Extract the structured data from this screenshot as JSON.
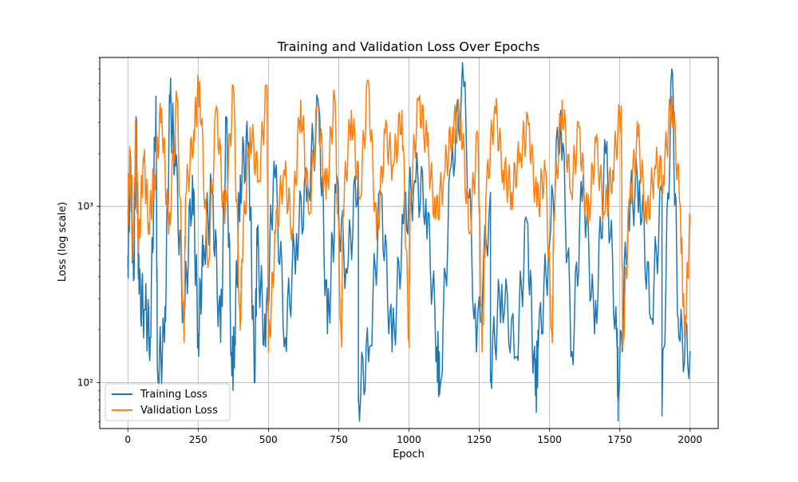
{
  "chart_data": {
    "type": "line",
    "title": "Training and Validation Loss Over Epochs",
    "xlabel": "Epoch",
    "ylabel": "Loss (log scale)",
    "xlim": [
      -100,
      2100
    ],
    "ylim": [
      55,
      7000
    ],
    "yscale": "log",
    "xticks": [
      0,
      250,
      500,
      750,
      1000,
      1250,
      1500,
      1750,
      2000
    ],
    "xtick_labels": [
      "0",
      "250",
      "500",
      "750",
      "1000",
      "1250",
      "1500",
      "1750",
      "2000"
    ],
    "yticks": [
      100,
      1000
    ],
    "ytick_labels": [
      "10²",
      "10³"
    ],
    "grid": true,
    "legend_position": "lower-left",
    "series": [
      {
        "name": "Training Loss",
        "color": "#1f77b4",
        "x": [
          0,
          10,
          20,
          30,
          40,
          60,
          80,
          100,
          130,
          150,
          170,
          200,
          230,
          250,
          270,
          300,
          330,
          350,
          380,
          400,
          430,
          460,
          490,
          520,
          560,
          600,
          640,
          680,
          710,
          740,
          780,
          820,
          860,
          900,
          940,
          980,
          1020,
          1060,
          1100,
          1150,
          1195,
          1240,
          1290,
          1330,
          1380,
          1420,
          1460,
          1500,
          1540,
          1580,
          1620,
          1660,
          1700,
          1740,
          1780,
          1820,
          1860,
          1900,
          1935,
          1960,
          2000
        ],
        "y": [
          520,
          1900,
          380,
          2600,
          320,
          260,
          180,
          4200,
          170,
          3900,
          1700,
          220,
          1500,
          190,
          600,
          1200,
          170,
          3200,
          180,
          1500,
          2300,
          600,
          160,
          1800,
          180,
          700,
          1300,
          3600,
          190,
          1200,
          420,
          1700,
          160,
          1200,
          150,
          800,
          1400,
          1100,
          160,
          1700,
          4800,
          150,
          1200,
          360,
          140,
          820,
          160,
          620,
          3500,
          150,
          1500,
          190,
          2000,
          160,
          980,
          1400,
          230,
          1200,
          6000,
          180,
          150
        ],
        "extra_points": [
          {
            "x": 105,
            "y": 120
          },
          {
            "x": 370,
            "y": 110
          },
          {
            "x": 450,
            "y": 100
          },
          {
            "x": 820,
            "y": 85
          },
          {
            "x": 1110,
            "y": 92
          },
          {
            "x": 1290,
            "y": 115
          },
          {
            "x": 1450,
            "y": 85
          },
          {
            "x": 1745,
            "y": 80
          },
          {
            "x": 1900,
            "y": 65
          }
        ]
      },
      {
        "name": "Validation Loss",
        "color": "#ff7f0e",
        "x": [
          0,
          8,
          18,
          28,
          38,
          55,
          75,
          95,
          120,
          145,
          175,
          205,
          235,
          255,
          285,
          315,
          345,
          375,
          405,
          435,
          465,
          495,
          525,
          555,
          585,
          615,
          645,
          675,
          705,
          735,
          765,
          795,
          825,
          855,
          885,
          915,
          945,
          975,
          1005,
          1035,
          1065,
          1095,
          1125,
          1155,
          1185,
          1215,
          1245,
          1275,
          1305,
          1335,
          1365,
          1395,
          1425,
          1455,
          1485,
          1515,
          1545,
          1575,
          1605,
          1635,
          1665,
          1695,
          1725,
          1755,
          1785,
          1815,
          1845,
          1875,
          1905,
          1935,
          1965,
          2000
        ],
        "y": [
          950,
          2000,
          500,
          2800,
          550,
          1900,
          800,
          1500,
          3600,
          700,
          4100,
          1100,
          2700,
          5100,
          450,
          3700,
          800,
          4800,
          500,
          2800,
          1400,
          4800,
          700,
          1600,
          750,
          4000,
          900,
          3700,
          1100,
          4300,
          950,
          3500,
          1100,
          5200,
          650,
          2600,
          1700,
          3500,
          1200,
          4000,
          2200,
          850,
          1500,
          2800,
          3200,
          700,
          2600,
          1200,
          3700,
          1600,
          1200,
          2000,
          2900,
          1000,
          1600,
          900,
          4000,
          1200,
          2800,
          800,
          2300,
          900,
          1600,
          3700,
          1100,
          2500,
          800,
          1700,
          1500,
          4200,
          1000,
          800
        ],
        "extra_points": [
          {
            "x": 200,
            "y": 170
          },
          {
            "x": 400,
            "y": 200
          },
          {
            "x": 500,
            "y": 150
          },
          {
            "x": 760,
            "y": 160
          },
          {
            "x": 1000,
            "y": 170
          },
          {
            "x": 1260,
            "y": 150
          },
          {
            "x": 1510,
            "y": 170
          },
          {
            "x": 1760,
            "y": 160
          },
          {
            "x": 1980,
            "y": 180
          }
        ]
      }
    ]
  }
}
